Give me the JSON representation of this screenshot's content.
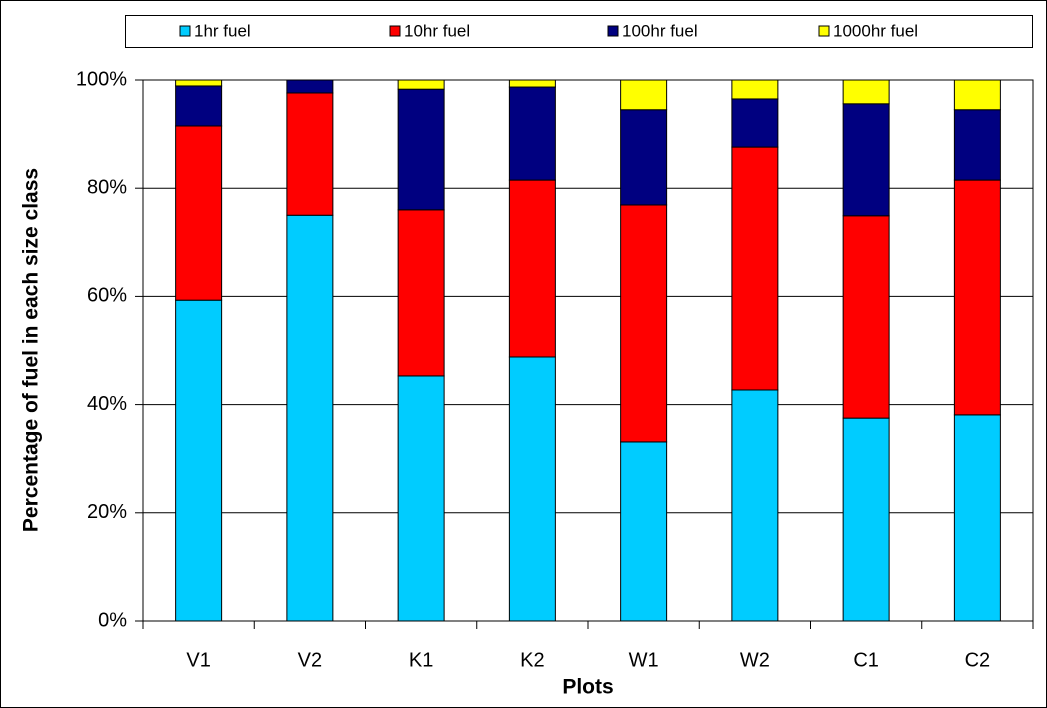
{
  "chart_data": {
    "type": "stacked_bar",
    "x_label": "Plots",
    "y_label": "Percentage of fuel in each size class",
    "categories": [
      "V1",
      "V2",
      "K1",
      "K2",
      "W1",
      "W2",
      "C1",
      "C2"
    ],
    "series": [
      {
        "name": "1hr fuel",
        "color": "#00ccff",
        "values": [
          59.3,
          75.0,
          45.3,
          48.8,
          33.1,
          42.7,
          37.5,
          38.1
        ]
      },
      {
        "name": "10hr fuel",
        "color": "#ff0000",
        "values": [
          32.2,
          22.6,
          30.7,
          32.7,
          43.8,
          44.9,
          37.4,
          43.4
        ]
      },
      {
        "name": "100hr fuel",
        "color": "#000080",
        "values": [
          7.4,
          2.4,
          22.3,
          17.2,
          17.6,
          8.9,
          20.7,
          13.0
        ]
      },
      {
        "name": "1000hr fuel",
        "color": "#ffff00",
        "values": [
          1.1,
          0,
          1.7,
          1.3,
          5.5,
          3.5,
          4.4,
          5.5
        ]
      }
    ],
    "ylim": [
      0,
      100
    ],
    "yticks": [
      {
        "value": 0,
        "label": "0%"
      },
      {
        "value": 20,
        "label": "20%"
      },
      {
        "value": 40,
        "label": "40%"
      },
      {
        "value": 60,
        "label": "60%"
      },
      {
        "value": 80,
        "label": "80%"
      },
      {
        "value": 100,
        "label": "100%"
      }
    ],
    "grid": true
  }
}
